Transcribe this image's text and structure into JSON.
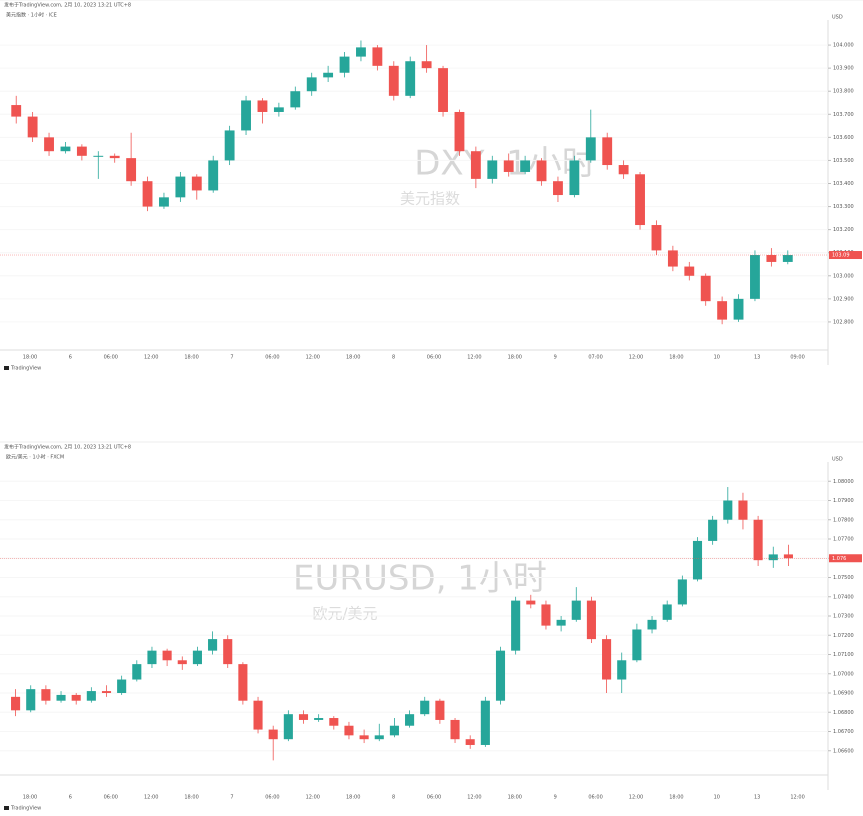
{
  "chart_data": [
    {
      "type": "candlestick",
      "publisher": "发布于TradingView.com, 2月 10, 2023 13:21 UTC+8",
      "legend_text": "美元指数 · 1小时 · ICE",
      "title": "DXY, 1小时",
      "subtitle": "美元指数",
      "currency": "USD",
      "branding": "TradingView",
      "up_color": "#26a69a",
      "down_color": "#ef5350",
      "x_labels": [
        "18:00",
        "6",
        "06:00",
        "12:00",
        "18:00",
        "7",
        "06:00",
        "12:00",
        "18:00",
        "8",
        "06:00",
        "12:00",
        "18:00",
        "9",
        "07:00",
        "12:00",
        "18:00",
        "10",
        "13",
        "09:00"
      ],
      "open": [
        103.74,
        103.69,
        103.6,
        103.54,
        103.56,
        103.52,
        103.52,
        103.51,
        103.41,
        103.3,
        103.34,
        103.43,
        103.37,
        103.5,
        103.63,
        103.76,
        103.71,
        103.73,
        103.8,
        103.86,
        103.88,
        103.95,
        103.99,
        103.91,
        103.78,
        103.93,
        103.9,
        103.71,
        103.54,
        103.42,
        103.5,
        103.45,
        103.5,
        103.41,
        103.35,
        103.5,
        103.6,
        103.48,
        103.44,
        103.22,
        103.11,
        103.04,
        103.0,
        102.89,
        102.81,
        102.9,
        103.09,
        103.06
      ],
      "high": [
        103.78,
        103.71,
        103.62,
        103.58,
        103.57,
        103.54,
        103.53,
        103.62,
        103.43,
        103.36,
        103.45,
        103.44,
        103.52,
        103.65,
        103.78,
        103.77,
        103.75,
        103.82,
        103.88,
        103.91,
        103.97,
        104.02,
        104.0,
        103.93,
        103.95,
        104.0,
        103.91,
        103.72,
        103.56,
        103.52,
        103.53,
        103.52,
        103.51,
        103.43,
        103.52,
        103.72,
        103.62,
        103.5,
        103.45,
        103.24,
        103.13,
        103.06,
        103.01,
        102.91,
        102.92,
        103.11,
        103.12,
        103.11
      ],
      "low": [
        103.66,
        103.58,
        103.52,
        103.53,
        103.5,
        103.42,
        103.49,
        103.39,
        103.28,
        103.29,
        103.32,
        103.33,
        103.36,
        103.48,
        103.61,
        103.66,
        103.69,
        103.72,
        103.78,
        103.84,
        103.86,
        103.93,
        103.89,
        103.76,
        103.77,
        103.88,
        103.69,
        103.52,
        103.38,
        103.4,
        103.43,
        103.44,
        103.39,
        103.32,
        103.34,
        103.49,
        103.46,
        103.42,
        103.2,
        103.09,
        103.02,
        102.98,
        102.87,
        102.79,
        102.8,
        102.89,
        103.04,
        103.05
      ],
      "close": [
        103.69,
        103.6,
        103.54,
        103.56,
        103.52,
        103.52,
        103.51,
        103.41,
        103.3,
        103.34,
        103.43,
        103.37,
        103.5,
        103.63,
        103.76,
        103.71,
        103.73,
        103.8,
        103.86,
        103.88,
        103.95,
        103.99,
        103.91,
        103.78,
        103.93,
        103.9,
        103.71,
        103.54,
        103.42,
        103.5,
        103.45,
        103.5,
        103.41,
        103.35,
        103.5,
        103.6,
        103.48,
        103.44,
        103.22,
        103.11,
        103.04,
        103.0,
        102.89,
        102.81,
        102.9,
        103.09,
        103.06,
        103.09
      ],
      "ylim": [
        102.7,
        104.1
      ],
      "yticks": [
        {
          "value": 102.8,
          "label": "102.800"
        },
        {
          "value": 102.9,
          "label": "102.900"
        },
        {
          "value": 103,
          "label": "103.000"
        },
        {
          "value": 103.1,
          "label": "103.100"
        },
        {
          "value": 103.2,
          "label": "103.200"
        },
        {
          "value": 103.3,
          "label": "103.300"
        },
        {
          "value": 103.4,
          "label": "103.400"
        },
        {
          "value": 103.5,
          "label": "103.500"
        },
        {
          "value": 103.6,
          "label": "103.600"
        },
        {
          "value": 103.7,
          "label": "103.700"
        },
        {
          "value": 103.8,
          "label": "103.800"
        },
        {
          "value": 103.9,
          "label": "103.900"
        },
        {
          "value": 104,
          "label": "104.000"
        }
      ]
    },
    {
      "type": "candlestick",
      "publisher": "发布于TradingView.com, 2月 10, 2023 13:21 UTC+8",
      "legend_text": "欧元/美元 · 1小时 · FXCM",
      "title": "EURUSD, 1小时",
      "subtitle": "欧元/美元",
      "currency": "USD",
      "branding": "TradingView",
      "up_color": "#26a69a",
      "down_color": "#ef5350",
      "x_labels": [
        "18:00",
        "6",
        "06:00",
        "12:00",
        "18:00",
        "7",
        "06:00",
        "12:00",
        "18:00",
        "8",
        "06:00",
        "12:00",
        "18:00",
        "9",
        "06:00",
        "12:00",
        "18:00",
        "10",
        "13",
        "12:00"
      ],
      "open": [
        1.0688,
        1.0681,
        1.0692,
        1.0686,
        1.0689,
        1.0686,
        1.0691,
        1.069,
        1.0697,
        1.0705,
        1.0712,
        1.0707,
        1.0705,
        1.0712,
        1.0718,
        1.0705,
        1.0686,
        1.0671,
        1.0666,
        1.0679,
        1.0676,
        1.0677,
        1.0673,
        1.0668,
        1.0666,
        1.0668,
        1.0673,
        1.0679,
        1.0686,
        1.0676,
        1.0666,
        1.0663,
        1.0686,
        1.0712,
        1.0738,
        1.0736,
        1.0725,
        1.0728,
        1.0738,
        1.0718,
        1.0697,
        1.0707,
        1.0723,
        1.0728,
        1.0736,
        1.0749,
        1.0769,
        1.078,
        1.079,
        1.078,
        1.0759,
        1.0762
      ],
      "high": [
        1.0692,
        1.0694,
        1.0694,
        1.0691,
        1.069,
        1.0693,
        1.0694,
        1.0699,
        1.0707,
        1.0714,
        1.0713,
        1.0709,
        1.0714,
        1.0722,
        1.072,
        1.0706,
        1.0688,
        1.0673,
        1.0681,
        1.0681,
        1.0679,
        1.0678,
        1.0675,
        1.0671,
        1.0674,
        1.0677,
        1.0681,
        1.0688,
        1.0687,
        1.0677,
        1.0668,
        1.0688,
        1.0714,
        1.074,
        1.0741,
        1.0738,
        1.073,
        1.0745,
        1.074,
        1.072,
        1.0711,
        1.0726,
        1.073,
        1.0738,
        1.0751,
        1.0771,
        1.0782,
        1.0797,
        1.0794,
        1.0782,
        1.0766,
        1.0767
      ],
      "low": [
        1.0678,
        1.068,
        1.0684,
        1.0685,
        1.0684,
        1.0685,
        1.0688,
        1.0689,
        1.0696,
        1.0703,
        1.0704,
        1.0702,
        1.0704,
        1.071,
        1.0703,
        1.0684,
        1.0669,
        1.0655,
        1.0665,
        1.0674,
        1.0675,
        1.0671,
        1.0666,
        1.0664,
        1.0665,
        1.0667,
        1.0672,
        1.0678,
        1.0674,
        1.0664,
        1.0661,
        1.0662,
        1.0684,
        1.071,
        1.0734,
        1.0723,
        1.0722,
        1.0727,
        1.0716,
        1.069,
        1.069,
        1.0706,
        1.0721,
        1.0727,
        1.0735,
        1.0748,
        1.0767,
        1.0778,
        1.0775,
        1.0756,
        1.0755,
        1.0756
      ],
      "close": [
        1.0681,
        1.0692,
        1.0686,
        1.0689,
        1.0686,
        1.0691,
        1.069,
        1.0697,
        1.0705,
        1.0712,
        1.0707,
        1.0705,
        1.0712,
        1.0718,
        1.0705,
        1.0686,
        1.0671,
        1.0666,
        1.0679,
        1.0676,
        1.0677,
        1.0673,
        1.0668,
        1.0666,
        1.0668,
        1.0673,
        1.0679,
        1.0686,
        1.0676,
        1.0666,
        1.0663,
        1.0686,
        1.0712,
        1.0738,
        1.0736,
        1.0725,
        1.0728,
        1.0738,
        1.0718,
        1.0697,
        1.0707,
        1.0723,
        1.0728,
        1.0736,
        1.0749,
        1.0769,
        1.078,
        1.079,
        1.078,
        1.0759,
        1.0762,
        1.076
      ],
      "ylim": [
        1.065,
        1.081
      ],
      "yticks": [
        {
          "value": 1.066,
          "label": "1.06600"
        },
        {
          "value": 1.067,
          "label": "1.06700"
        },
        {
          "value": 1.068,
          "label": "1.06800"
        },
        {
          "value": 1.069,
          "label": "1.06900"
        },
        {
          "value": 1.07,
          "label": "1.07000"
        },
        {
          "value": 1.071,
          "label": "1.07100"
        },
        {
          "value": 1.072,
          "label": "1.07200"
        },
        {
          "value": 1.073,
          "label": "1.07300"
        },
        {
          "value": 1.074,
          "label": "1.07400"
        },
        {
          "value": 1.075,
          "label": "1.07500"
        },
        {
          "value": 1.076,
          "label": "1.07600"
        },
        {
          "value": 1.077,
          "label": "1.07700"
        },
        {
          "value": 1.078,
          "label": "1.07800"
        },
        {
          "value": 1.079,
          "label": "1.07900"
        },
        {
          "value": 1.08,
          "label": "1.08000"
        }
      ]
    }
  ]
}
